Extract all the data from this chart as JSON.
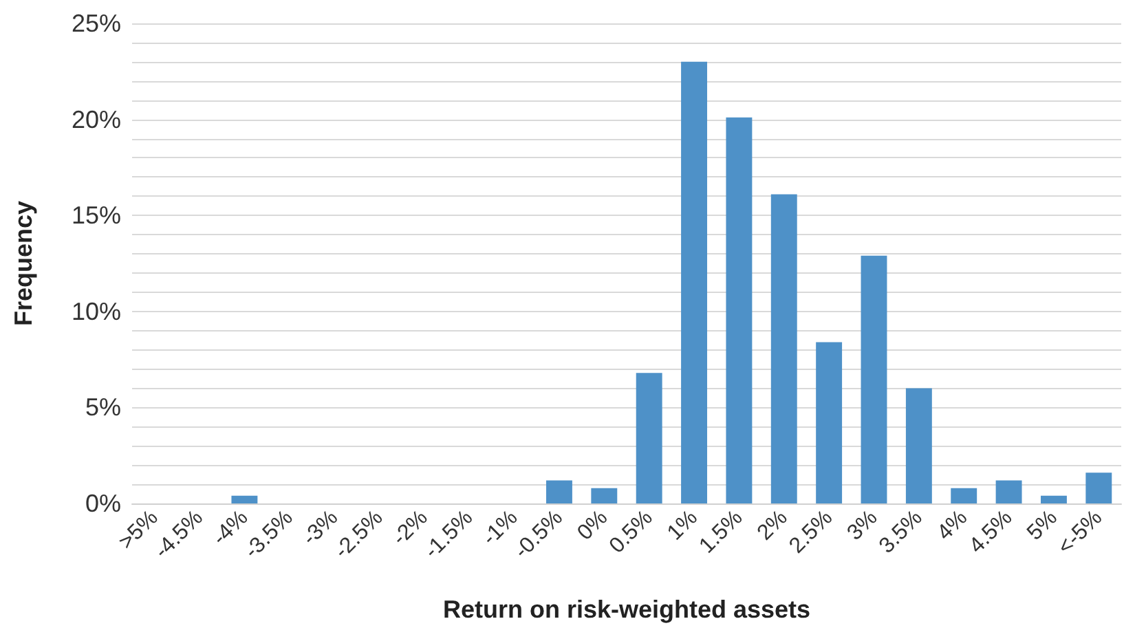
{
  "chart_data": {
    "type": "bar",
    "xlabel": "Return on risk-weighted assets",
    "ylabel": "Frequency",
    "categories": [
      ">5%",
      "-4.5%",
      "-4%",
      "-3.5%",
      "-3%",
      "-2.5%",
      "-2%",
      "-1.5%",
      "-1%",
      "-0.5%",
      "0%",
      "0.5%",
      "1%",
      "1.5%",
      "2%",
      "2.5%",
      "3%",
      "3.5%",
      "4%",
      "4.5%",
      "5%",
      "<-5%"
    ],
    "values": [
      0,
      0,
      0.4,
      0,
      0,
      0,
      0,
      0,
      0,
      1.2,
      0.8,
      6.8,
      23.0,
      20.1,
      16.1,
      8.4,
      12.9,
      6.0,
      0.8,
      1.2,
      0.4,
      1.6
    ],
    "color": "#4e91c8",
    "ylim": [
      0,
      25
    ],
    "yticks": [
      {
        "value": 0,
        "label": "0%"
      },
      {
        "value": 1,
        "label": null
      },
      {
        "value": 2,
        "label": null
      },
      {
        "value": 3,
        "label": null
      },
      {
        "value": 4,
        "label": null
      },
      {
        "value": 5,
        "label": "5%"
      },
      {
        "value": 6,
        "label": null
      },
      {
        "value": 7,
        "label": null
      },
      {
        "value": 8,
        "label": null
      },
      {
        "value": 9,
        "label": null
      },
      {
        "value": 10,
        "label": "10%"
      },
      {
        "value": 11,
        "label": null
      },
      {
        "value": 12,
        "label": null
      },
      {
        "value": 13,
        "label": null
      },
      {
        "value": 14,
        "label": null
      },
      {
        "value": 15,
        "label": "15%"
      },
      {
        "value": 16,
        "label": null
      },
      {
        "value": 17,
        "label": null
      },
      {
        "value": 18,
        "label": null
      },
      {
        "value": 19,
        "label": null
      },
      {
        "value": 20,
        "label": "20%"
      },
      {
        "value": 21,
        "label": null
      },
      {
        "value": 22,
        "label": null
      },
      {
        "value": 23,
        "label": null
      },
      {
        "value": 24,
        "label": null
      },
      {
        "value": 25,
        "label": "25%"
      }
    ],
    "grid": true
  }
}
